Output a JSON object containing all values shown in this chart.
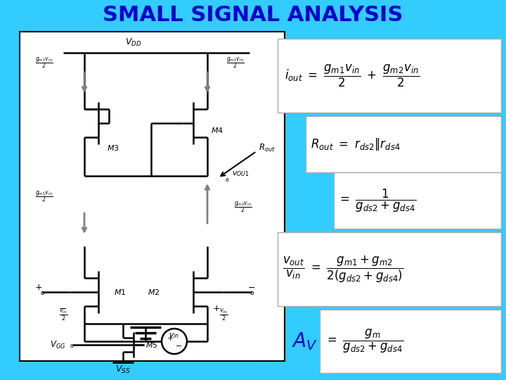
{
  "title": "SMALL SIGNAL ANALYSIS",
  "title_color": "#0000CC",
  "title_fontsize": 22,
  "bg_color": "#33CCFF",
  "white": "#FFFFFF",
  "black": "#000000",
  "blue": "#0000CC",
  "gray": "#808080"
}
